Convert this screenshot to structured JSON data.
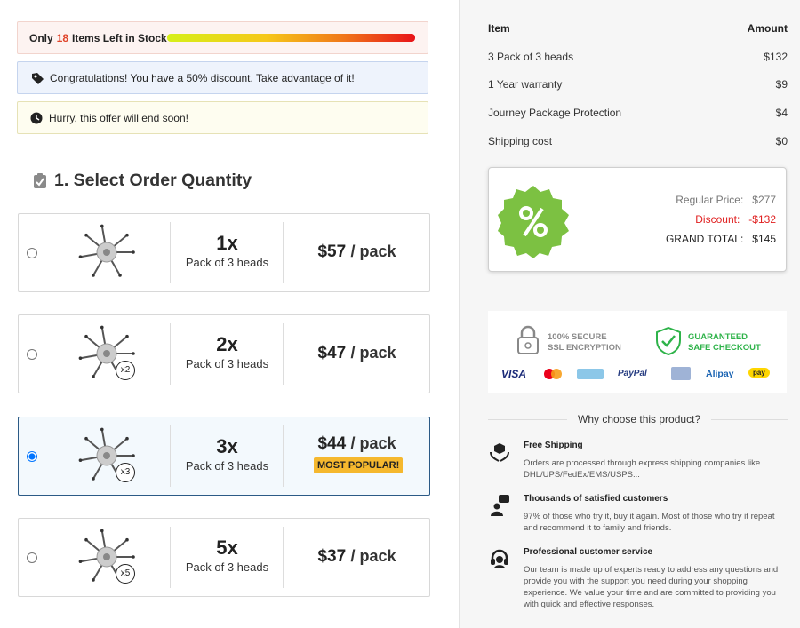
{
  "stock": {
    "prefix": "Only",
    "count": "18",
    "suffix": "Items Left in Stock"
  },
  "discount_notice": "Congratulations! You have a 50% discount. Take advantage of it!",
  "hurry_notice": "Hurry, this offer will end soon!",
  "section_title": "1. Select Order Quantity",
  "options": [
    {
      "quantity": "1x",
      "subtitle": "Pack of 3 heads",
      "price": "$57",
      "unit": "/ pack"
    },
    {
      "quantity": "2x",
      "subtitle": "Pack of 3 heads",
      "price": "$47",
      "unit": "/ pack",
      "badge": "x2"
    },
    {
      "quantity": "3x",
      "subtitle": "Pack of 3 heads",
      "price": "$44",
      "unit": "/ pack",
      "badge": "x3",
      "tag": "MOST POPULAR!",
      "selected": true
    },
    {
      "quantity": "5x",
      "subtitle": "Pack of 3 heads",
      "price": "$37",
      "unit": "/ pack",
      "badge": "x5"
    }
  ],
  "summary": {
    "header": [
      "Item",
      "Amount"
    ],
    "rows": [
      [
        "3 Pack of 3 heads",
        "$132"
      ],
      [
        "1 Year warranty",
        "$9"
      ],
      [
        "Journey Package Protection",
        "$4"
      ],
      [
        "Shipping cost",
        "$0"
      ]
    ],
    "totals": [
      [
        "Regular Price:",
        "$277"
      ],
      [
        "Discount:",
        "-$132"
      ],
      [
        "GRAND TOTAL:",
        "$145"
      ]
    ]
  },
  "trust": {
    "secure": [
      "100% SECURE",
      "SSL ENCRYPTION"
    ],
    "guarantee": [
      "GUARANTEED",
      "SAFE CHECKOUT"
    ],
    "payments": [
      "VISA",
      "PayPal",
      "Alipay",
      "pay"
    ]
  },
  "why": {
    "title": "Why choose this product?",
    "features": [
      {
        "title": "Free Shipping",
        "text": "Orders are processed through express shipping companies like DHL/UPS/FedEx/EMS/USPS..."
      },
      {
        "title": "Thousands of satisfied customers",
        "text": "97% of those who try it, buy it again. Most of those who try it repeat and recommend it to family and friends."
      },
      {
        "title": "Professional customer service",
        "text": "Our team is made up of experts ready to address any questions and provide you with the support you need during your shopping experience. We value your time and are committed to providing you with quick and effective responses."
      }
    ]
  }
}
